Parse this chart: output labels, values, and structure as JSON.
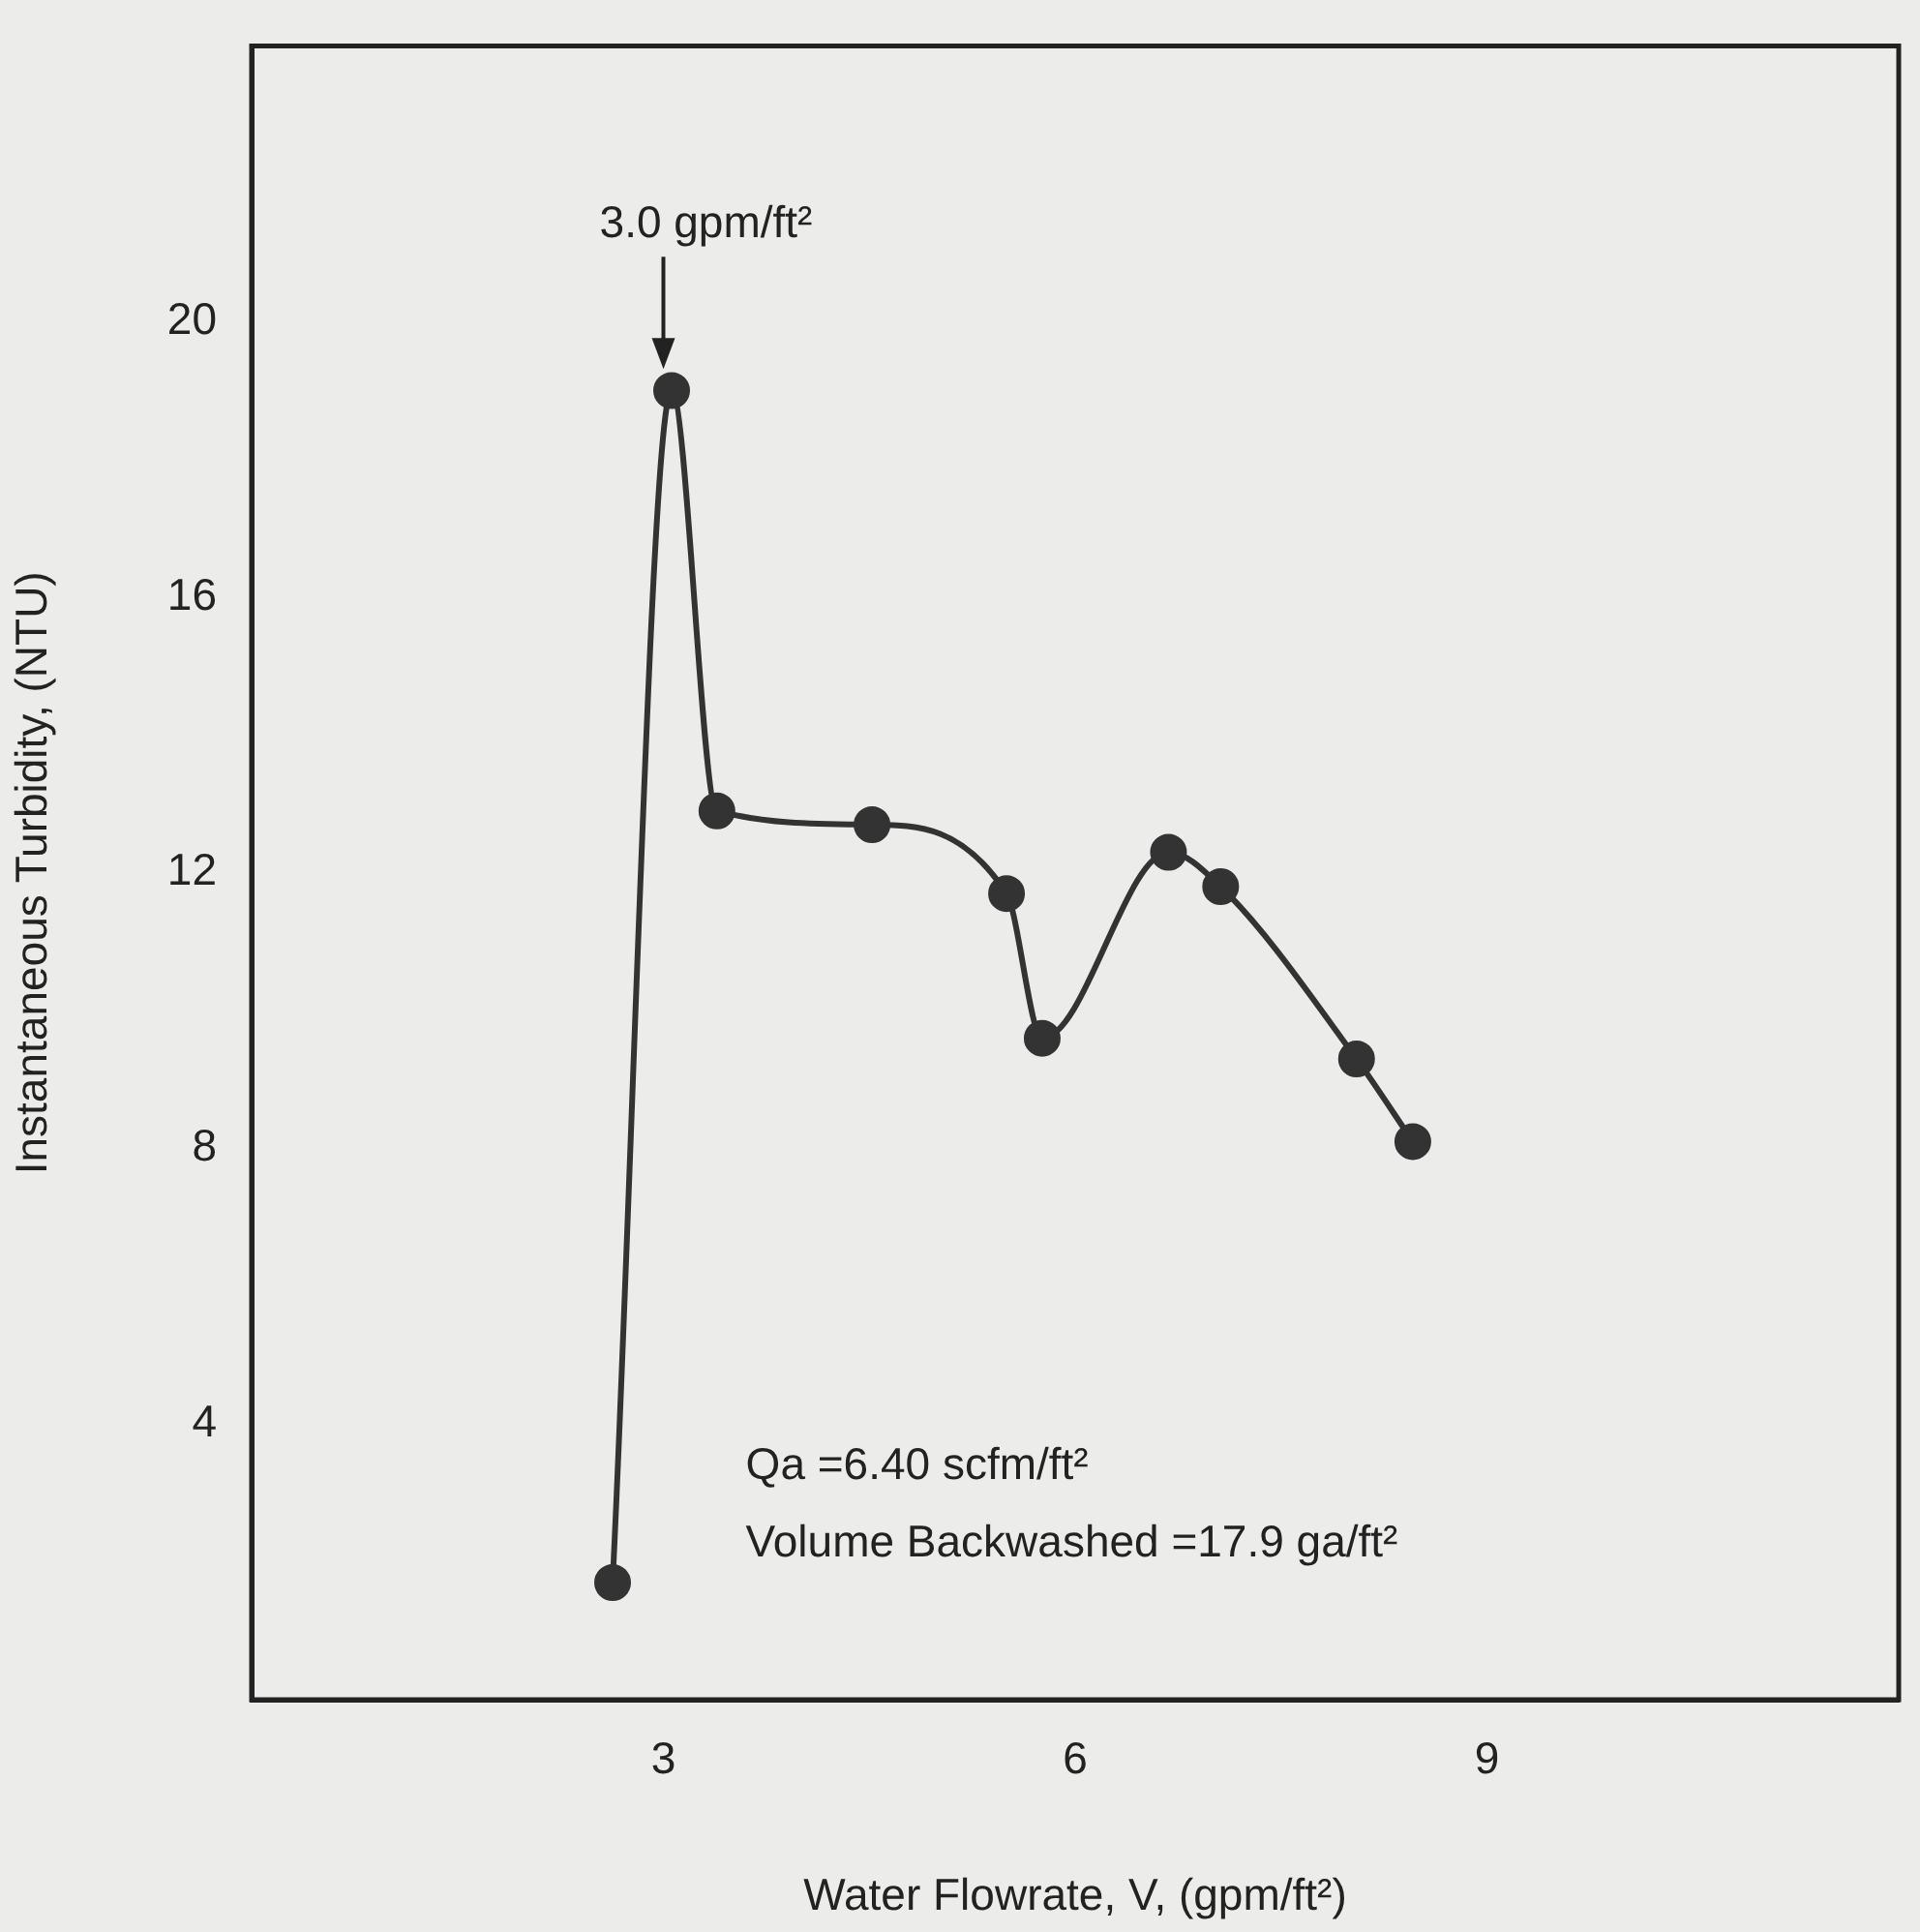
{
  "chart_data": {
    "type": "line",
    "xlabel": "Water Flowrate, V, (gpm/ft²)",
    "ylabel": "Instantaneous Turbidity, (NTU)",
    "x": [
      2.63,
      3.06,
      3.39,
      4.52,
      5.5,
      5.76,
      6.68,
      7.06,
      8.05,
      8.46
    ],
    "series": [
      {
        "color": "#333333",
        "values": [
          1.7,
          19.0,
          12.9,
          12.7,
          11.7,
          9.6,
          12.3,
          11.8,
          9.3,
          8.1
        ]
      }
    ],
    "xlim": [
      0,
      12
    ],
    "xticks": [
      3,
      6,
      9
    ],
    "ylim": [
      0,
      24
    ],
    "yticks": [
      4,
      8,
      12,
      16,
      20
    ],
    "grid": false,
    "legend": false,
    "marker": "circle",
    "line_style": "solid",
    "annotations": [
      {
        "text": "3.0 gpm/ft²",
        "x": 3.0,
        "y": 19.2
      },
      "Qa =6.40 scfm/ft²",
      "Volume Backwashed =17.9 ga/ft²"
    ]
  }
}
